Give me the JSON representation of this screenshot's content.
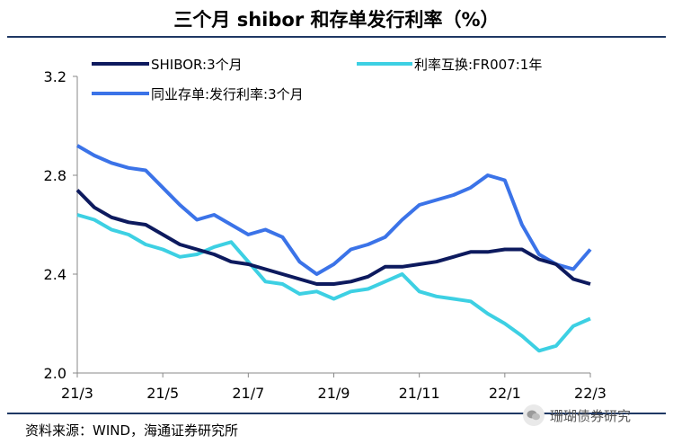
{
  "title": "三个月 shibor 和存单发行利率（%）",
  "source": "资料来源：WIND，海通证券研究所",
  "watermark": "珊瑚债券研究",
  "chart_data": {
    "type": "line",
    "y_ticks": [
      "2.0",
      "2.4",
      "2.8",
      "3.2"
    ],
    "ylim": [
      2.0,
      3.2
    ],
    "x_ticks": [
      "21/3",
      "21/5",
      "21/7",
      "21/9",
      "21/11",
      "22/1",
      "22/3"
    ],
    "xlim": [
      0,
      12
    ],
    "series": [
      {
        "name": "SHIBOR:3个月",
        "color": "#0d1a5e",
        "x": [
          0,
          0.4,
          0.8,
          1.2,
          1.6,
          2.0,
          2.4,
          2.8,
          3.2,
          3.6,
          4.0,
          4.4,
          4.8,
          5.2,
          5.6,
          6.0,
          6.4,
          6.8,
          7.2,
          7.6,
          8.0,
          8.4,
          8.8,
          9.2,
          9.6,
          10.0,
          10.4,
          10.8,
          11.2,
          11.6,
          12.0
        ],
        "y": [
          2.74,
          2.67,
          2.63,
          2.61,
          2.6,
          2.56,
          2.52,
          2.5,
          2.48,
          2.45,
          2.44,
          2.42,
          2.4,
          2.38,
          2.36,
          2.36,
          2.37,
          2.39,
          2.43,
          2.43,
          2.44,
          2.45,
          2.47,
          2.49,
          2.49,
          2.5,
          2.5,
          2.46,
          2.44,
          2.38,
          2.36
        ]
      },
      {
        "name": "利率互换:FR007:1年",
        "color": "#3dd0e3",
        "x": [
          0,
          0.4,
          0.8,
          1.2,
          1.6,
          2.0,
          2.4,
          2.8,
          3.2,
          3.6,
          4.0,
          4.4,
          4.8,
          5.2,
          5.6,
          6.0,
          6.4,
          6.8,
          7.2,
          7.6,
          8.0,
          8.4,
          8.8,
          9.2,
          9.6,
          10.0,
          10.4,
          10.8,
          11.2,
          11.6,
          12.0
        ],
        "y": [
          2.64,
          2.62,
          2.58,
          2.56,
          2.52,
          2.5,
          2.47,
          2.48,
          2.51,
          2.53,
          2.45,
          2.37,
          2.36,
          2.32,
          2.33,
          2.3,
          2.33,
          2.34,
          2.37,
          2.4,
          2.33,
          2.31,
          2.3,
          2.29,
          2.24,
          2.2,
          2.15,
          2.09,
          2.11,
          2.19,
          2.22
        ]
      },
      {
        "name": "同业存单:发行利率:3个月",
        "color": "#3b73e8",
        "x": [
          0,
          0.4,
          0.8,
          1.2,
          1.6,
          2.0,
          2.4,
          2.8,
          3.2,
          3.6,
          4.0,
          4.4,
          4.8,
          5.2,
          5.6,
          6.0,
          6.4,
          6.8,
          7.2,
          7.6,
          8.0,
          8.4,
          8.8,
          9.2,
          9.6,
          10.0,
          10.4,
          10.8,
          11.2,
          11.6,
          12.0
        ],
        "y": [
          2.92,
          2.88,
          2.85,
          2.83,
          2.82,
          2.75,
          2.68,
          2.62,
          2.64,
          2.6,
          2.56,
          2.58,
          2.55,
          2.45,
          2.4,
          2.44,
          2.5,
          2.52,
          2.55,
          2.62,
          2.68,
          2.7,
          2.72,
          2.75,
          2.8,
          2.78,
          2.6,
          2.48,
          2.44,
          2.42,
          2.5
        ]
      }
    ]
  }
}
